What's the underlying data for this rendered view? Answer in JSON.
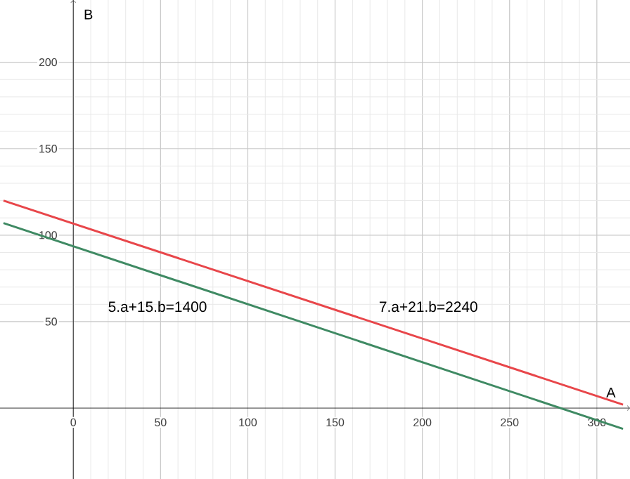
{
  "chart_data": {
    "type": "line",
    "xlabel": "A",
    "ylabel": "B",
    "xlim": [
      -42,
      319
    ],
    "ylim": [
      -41,
      236
    ],
    "xticks": [
      0,
      50,
      100,
      150,
      200,
      250,
      300
    ],
    "yticks": [
      50,
      100,
      150,
      200
    ],
    "grid": true,
    "x": [
      -40,
      315
    ],
    "series": [
      {
        "color": "#e8464a",
        "values": [
          120,
          2
        ]
      },
      {
        "color": "#3f8a63",
        "values": [
          107,
          -12
        ]
      }
    ],
    "annotations": [
      "5.a+15.b=1400",
      "7.a+21.b=2240"
    ]
  }
}
